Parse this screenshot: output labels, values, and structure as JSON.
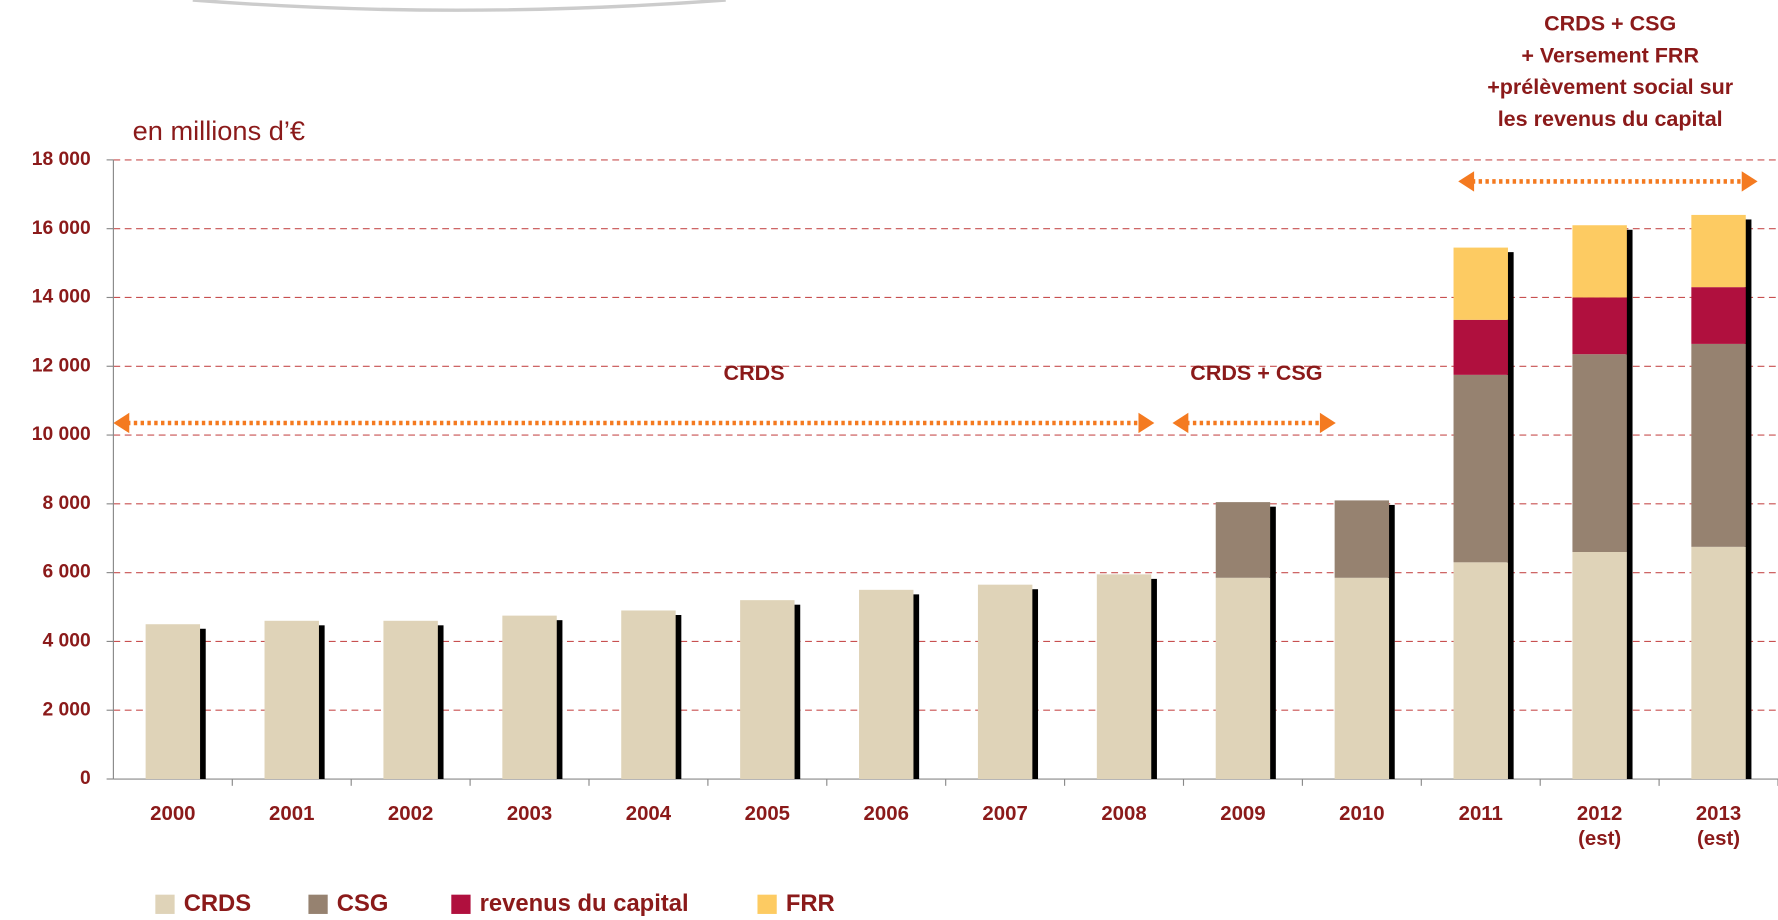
{
  "chart_data": {
    "type": "stacked_bar",
    "y_axis_label": "en millions d’€",
    "categories": [
      "2000",
      "2001",
      "2002",
      "2003",
      "2004",
      "2005",
      "2006",
      "2007",
      "2008",
      "2009",
      "2010",
      "2011",
      "2012\n(est)",
      "2013\n(est)"
    ],
    "series": [
      {
        "name": "CRDS",
        "color": "#dfd3b8",
        "values": [
          4500,
          4600,
          4600,
          4750,
          4900,
          5200,
          5500,
          5650,
          5950,
          5850,
          5850,
          6300,
          6600,
          6750
        ]
      },
      {
        "name": "CSG",
        "color": "#968270",
        "values": [
          null,
          null,
          null,
          null,
          null,
          null,
          null,
          null,
          null,
          2200,
          2250,
          5450,
          5750,
          5900
        ]
      },
      {
        "name": "revenus du capital",
        "color": "#b0103e",
        "values": [
          null,
          null,
          null,
          null,
          null,
          null,
          null,
          null,
          null,
          null,
          null,
          1600,
          1650,
          1650
        ]
      },
      {
        "name": "FRR",
        "color": "#fdcb62",
        "values": [
          null,
          null,
          null,
          null,
          null,
          null,
          null,
          null,
          null,
          null,
          null,
          2100,
          2100,
          2100
        ]
      }
    ],
    "ylim": [
      0,
      18000
    ],
    "yticks": [
      0,
      {
        "value": 2000,
        "label": "2 000"
      },
      {
        "value": 4000,
        "label": "4 000"
      },
      {
        "value": 6000,
        "label": "6 000"
      },
      {
        "value": 8000,
        "label": "8 000"
      },
      {
        "value": 10000,
        "label": "10 000"
      },
      {
        "value": 12000,
        "label": "12 000"
      },
      {
        "value": 14000,
        "label": "14 000"
      },
      {
        "value": 16000,
        "label": "16 000"
      },
      {
        "value": 18000,
        "label": "18 000"
      }
    ],
    "grid": true,
    "annotations": [
      {
        "lines": [
          "CRDS"
        ]
      },
      {
        "lines": [
          "CRDS + CSG"
        ]
      },
      {
        "lines": [
          "CRDS + CSG",
          "+ Versement FRR",
          "+prélèvement social sur",
          "les revenus du capital"
        ]
      }
    ]
  }
}
